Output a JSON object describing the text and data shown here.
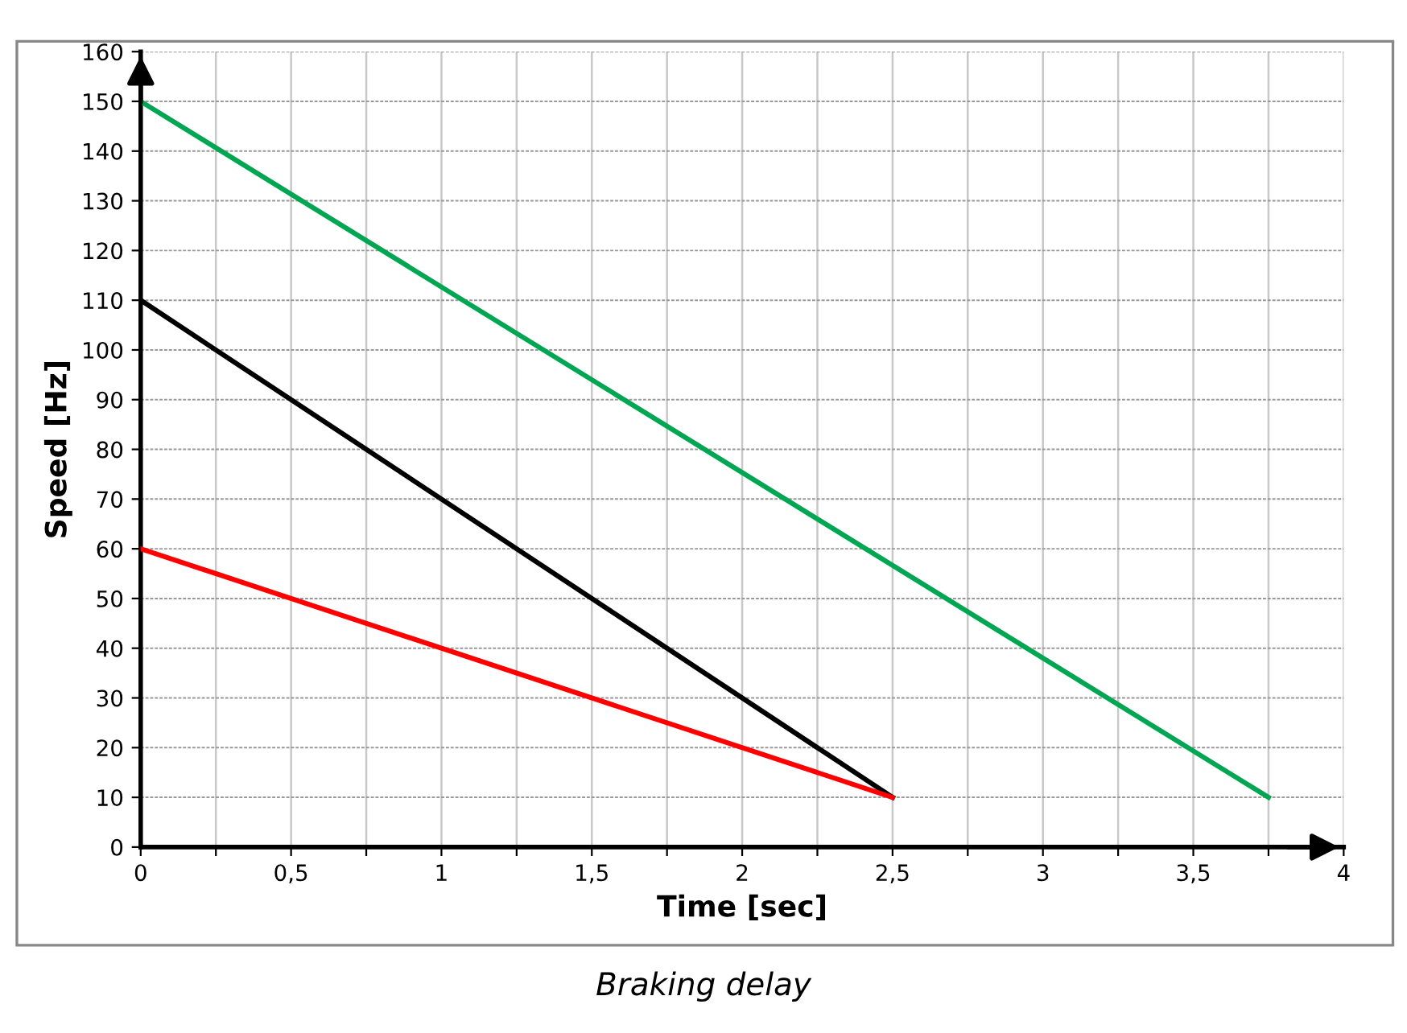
{
  "chart_data": {
    "type": "line",
    "xlabel": "Time [sec]",
    "ylabel": "Speed [Hz]",
    "annotations": [
      "Braking delay"
    ],
    "series": [
      {
        "color": "#00a651",
        "x": [
          0,
          3.75
        ],
        "values": [
          150,
          10
        ]
      },
      {
        "color": "#000000",
        "x": [
          0,
          2.5
        ],
        "values": [
          110,
          10
        ]
      },
      {
        "color": "#ff0000",
        "x": [
          0,
          2.5
        ],
        "values": [
          60,
          10
        ]
      }
    ],
    "xlim": [
      0,
      4
    ],
    "ylim": [
      0,
      160
    ],
    "xticks": [
      0,
      {
        "value": 0.25,
        "label": null
      },
      {
        "value": 0.5,
        "label": "0,5"
      },
      {
        "value": 0.75,
        "label": null
      },
      1,
      {
        "value": 1.25,
        "label": null
      },
      {
        "value": 1.5,
        "label": "1,5"
      },
      {
        "value": 1.75,
        "label": null
      },
      2,
      {
        "value": 2.25,
        "label": null
      },
      {
        "value": 2.5,
        "label": "2,5"
      },
      {
        "value": 2.75,
        "label": null
      },
      3,
      {
        "value": 3.25,
        "label": null
      },
      {
        "value": 3.5,
        "label": "3,5"
      },
      {
        "value": 3.75,
        "label": null
      },
      4
    ],
    "yticks": [
      0,
      10,
      20,
      30,
      40,
      50,
      60,
      70,
      80,
      90,
      100,
      110,
      120,
      130,
      140,
      150,
      160
    ],
    "grid": true,
    "marker": "none",
    "line_style": "solid"
  }
}
